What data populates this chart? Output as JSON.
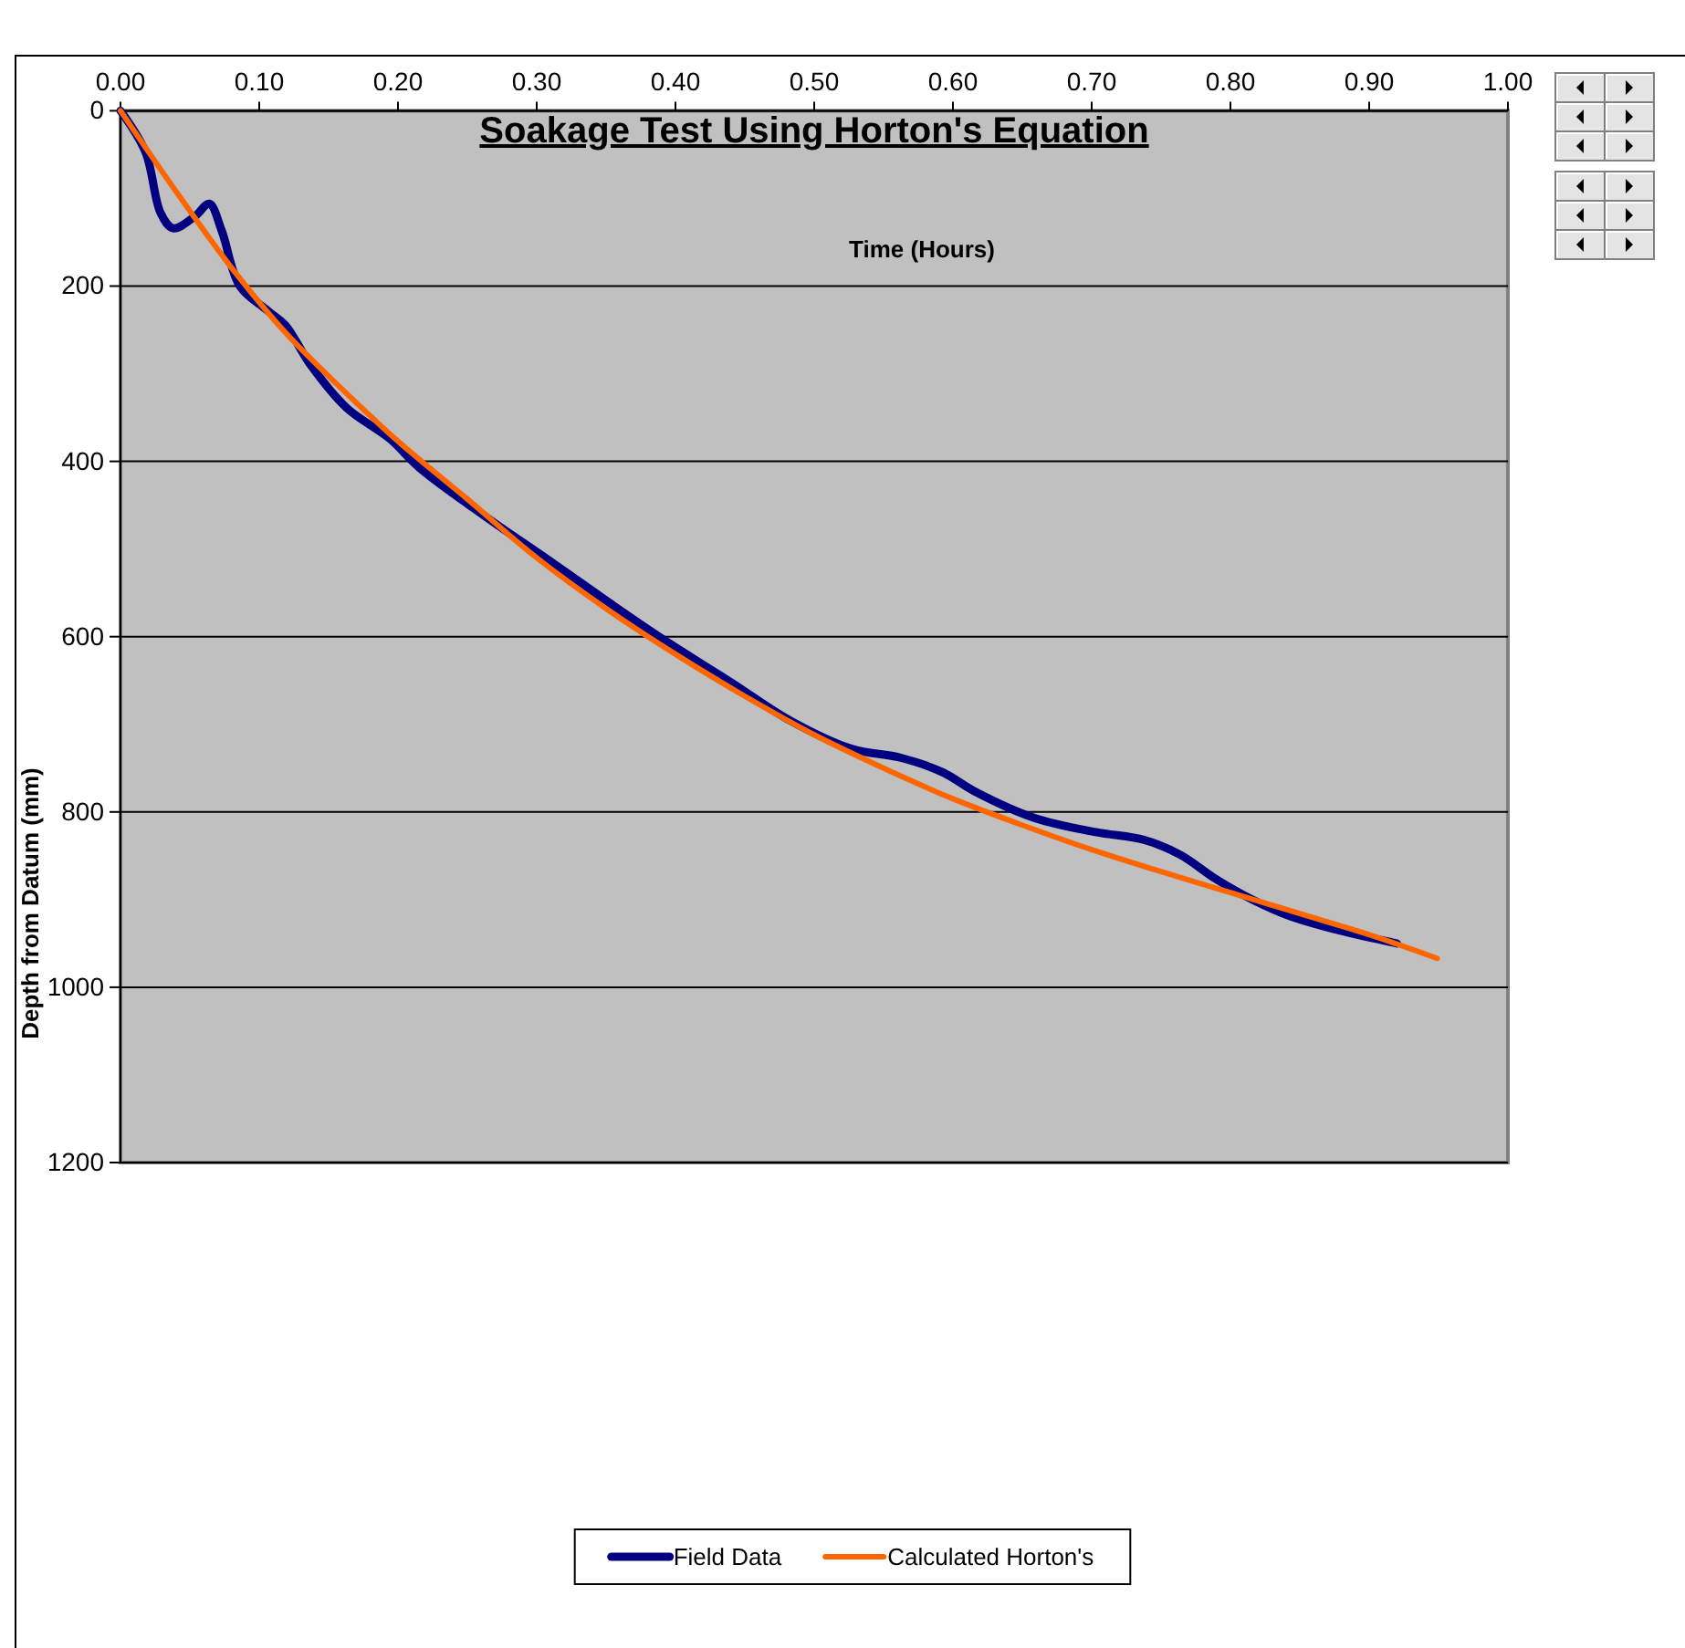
{
  "chart_data": {
    "type": "line",
    "title": "Soakage Test Using Horton's Equation",
    "xlabel": "Time (Hours)",
    "ylabel": "Depth from Datum (mm)",
    "xlim": [
      0,
      1
    ],
    "xticks": [
      {
        "value": 0,
        "label": "0.00"
      },
      {
        "value": 0.1,
        "label": "0.10"
      },
      {
        "value": 0.2,
        "label": "0.20"
      },
      {
        "value": 0.3,
        "label": "0.30"
      },
      {
        "value": 0.4,
        "label": "0.40"
      },
      {
        "value": 0.5,
        "label": "0.50"
      },
      {
        "value": 0.6,
        "label": "0.60"
      },
      {
        "value": 0.7,
        "label": "0.70"
      },
      {
        "value": 0.8,
        "label": "0.80"
      },
      {
        "value": 0.9,
        "label": "0.90"
      },
      {
        "value": 1,
        "label": "1.00"
      }
    ],
    "ylim": [
      1200,
      0
    ],
    "yticks": [
      0,
      200,
      400,
      600,
      800,
      1000,
      1200
    ],
    "grid": "y",
    "legend": "bottom",
    "series": [
      {
        "name": "Field Data",
        "color": "#000080",
        "x": [
          0,
          0.018,
          0.029,
          0.038,
          0.054,
          0.064,
          0.073,
          0.086,
          0.106,
          0.119,
          0.137,
          0.163,
          0.194,
          0.216,
          0.264,
          0.308,
          0.352,
          0.391,
          0.439,
          0.483,
          0.527,
          0.562,
          0.593,
          0.615,
          0.659,
          0.703,
          0.738,
          0.764,
          0.79,
          0.817,
          0.843,
          0.878,
          0.92
        ],
        "values": [
          0,
          47,
          117,
          134,
          120,
          106,
          137,
          200,
          228,
          245,
          290,
          339,
          374,
          408,
          464,
          512,
          561,
          603,
          651,
          696,
          728,
          738,
          755,
          776,
          807,
          823,
          832,
          849,
          877,
          901,
          919,
          935,
          950
        ]
      },
      {
        "name": "Calculated Horton's",
        "color": "#ff6600",
        "x": [
          0,
          0.04,
          0.08,
          0.12,
          0.16,
          0.2,
          0.25,
          0.3,
          0.35,
          0.4,
          0.45,
          0.5,
          0.55,
          0.6,
          0.65,
          0.7,
          0.75,
          0.8,
          0.85,
          0.9,
          0.949
        ],
        "values": [
          0,
          92,
          179,
          255,
          318,
          377,
          443,
          510,
          568,
          620,
          668,
          712,
          750,
          785,
          815,
          843,
          868,
          892,
          916,
          940,
          967
        ]
      }
    ]
  }
}
